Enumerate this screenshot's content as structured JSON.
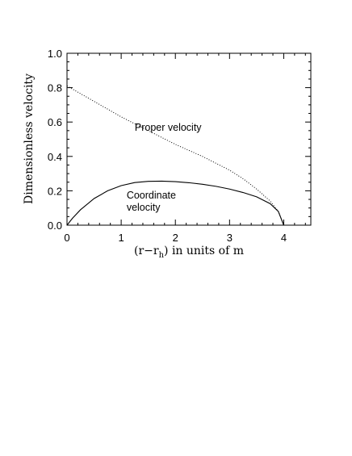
{
  "chart_data": {
    "type": "line",
    "xlabel_main": "(r−r",
    "xlabel_sub": "h",
    "xlabel_rest": ") in units of m",
    "ylabel": "Dimensionless velocity",
    "xlim": [
      0,
      4.5
    ],
    "ylim": [
      0,
      1.0
    ],
    "x_ticks": [
      0,
      1,
      2,
      3,
      4
    ],
    "x_tick_labels": [
      "0",
      "1",
      "2",
      "3",
      "4"
    ],
    "y_ticks": [
      0,
      0.2,
      0.4,
      0.6,
      0.8,
      1.0
    ],
    "y_tick_labels": [
      "0.0",
      "0.2",
      "0.4",
      "0.6",
      "0.8",
      "1.0"
    ],
    "series": [
      {
        "style": "dotted",
        "x": [
          0,
          0.25,
          0.5,
          0.75,
          1.0,
          1.25,
          1.5,
          1.75,
          2.0,
          2.25,
          2.5,
          2.75,
          3.0,
          3.25,
          3.5,
          3.75,
          3.9,
          4.0
        ],
        "y": [
          0.81,
          0.765,
          0.72,
          0.675,
          0.63,
          0.59,
          0.55,
          0.51,
          0.47,
          0.435,
          0.4,
          0.36,
          0.32,
          0.27,
          0.21,
          0.14,
          0.08,
          0.0
        ]
      },
      {
        "style": "solid",
        "x": [
          0,
          0.1,
          0.25,
          0.5,
          0.75,
          1.0,
          1.25,
          1.5,
          1.75,
          2.0,
          2.25,
          2.5,
          2.75,
          3.0,
          3.25,
          3.5,
          3.75,
          3.9,
          4.0
        ],
        "y": [
          0.0,
          0.04,
          0.09,
          0.155,
          0.2,
          0.23,
          0.248,
          0.255,
          0.256,
          0.253,
          0.247,
          0.238,
          0.226,
          0.21,
          0.19,
          0.165,
          0.125,
          0.08,
          0.0
        ]
      }
    ],
    "annotations": [
      {
        "lines": [
          "Proper velocity"
        ],
        "x": 1.25,
        "y": 0.55
      },
      {
        "lines": [
          "Coordinate",
          "velocity"
        ],
        "x": 1.1,
        "y": 0.155
      }
    ]
  }
}
